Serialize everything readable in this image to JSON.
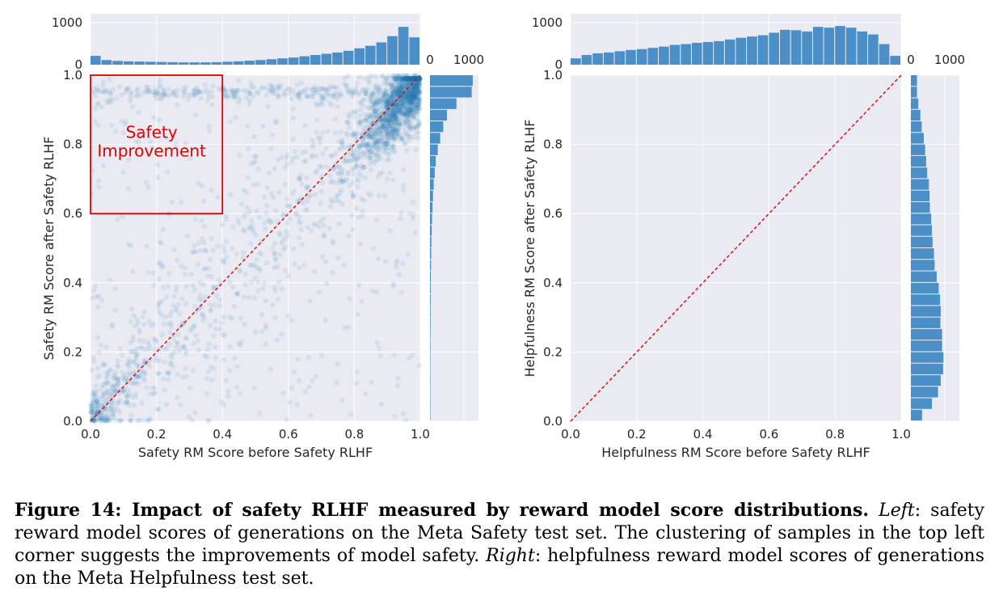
{
  "chart_data": [
    {
      "type": "scatter",
      "xlabel": "Safety RM Score before Safety RLHF",
      "ylabel": "Safety RM Score after Safety RLHF",
      "xlim": [
        0,
        1
      ],
      "ylim": [
        0,
        1
      ],
      "xticks": [
        "0.0",
        "0.2",
        "0.4",
        "0.6",
        "0.8",
        "1.0"
      ],
      "yticks": [
        "0.0",
        "0.2",
        "0.4",
        "0.6",
        "0.8",
        "1.0"
      ],
      "diagonal": true,
      "highlight_region": {
        "x": [
          0,
          0.4
        ],
        "y": [
          0.6,
          1.0
        ],
        "label_line1": "Safety",
        "label_line2": "Improvement"
      },
      "top_hist": {
        "axis_ticks": [
          "0",
          "1000"
        ],
        "max": 1000,
        "bins": 30,
        "counts": [
          210,
          110,
          90,
          80,
          75,
          70,
          65,
          60,
          55,
          55,
          55,
          60,
          70,
          80,
          95,
          110,
          130,
          150,
          170,
          200,
          230,
          260,
          290,
          330,
          390,
          450,
          530,
          680,
          900,
          650
        ]
      },
      "right_hist": {
        "axis_ticks": [
          "0",
          "1000"
        ],
        "max": 1000,
        "bins": 30,
        "counts": [
          1260,
          1230,
          780,
          500,
          390,
          300,
          230,
          170,
          140,
          110,
          90,
          75,
          60,
          50,
          40,
          35,
          30,
          25,
          22,
          20,
          18,
          16,
          15,
          14,
          13,
          12,
          12,
          12,
          12,
          12
        ]
      },
      "scatter_note": "dense cluster near (1,1), spread around diagonal, band near y≈0.95"
    },
    {
      "type": "scatter",
      "xlabel": "Helpfulness RM Score before Safety RLHF",
      "ylabel": "Helpfulness RM Score after Safety RLHF",
      "xlim": [
        0,
        1
      ],
      "ylim": [
        0,
        1
      ],
      "xticks": [
        "0.0",
        "0.2",
        "0.4",
        "0.6",
        "0.8",
        "1.0"
      ],
      "yticks": [
        "0.0",
        "0.2",
        "0.4",
        "0.6",
        "0.8",
        "1.0"
      ],
      "diagonal": true,
      "top_hist": {
        "axis_ticks": [
          "0",
          "1000"
        ],
        "max": 1000,
        "bins": 30,
        "counts": [
          150,
          230,
          270,
          290,
          320,
          350,
          370,
          400,
          430,
          470,
          490,
          520,
          540,
          560,
          600,
          640,
          670,
          700,
          760,
          830,
          820,
          790,
          900,
          880,
          920,
          880,
          790,
          720,
          490,
          210
        ]
      },
      "right_hist": {
        "axis_ticks": [
          "0",
          "1000"
        ],
        "max": 1000,
        "bins": 30,
        "counts": [
          180,
          180,
          220,
          280,
          320,
          380,
          420,
          450,
          480,
          530,
          550,
          560,
          600,
          620,
          640,
          680,
          700,
          760,
          820,
          860,
          880,
          870,
          920,
          920,
          960,
          950,
          880,
          800,
          620,
          330
        ]
      }
    }
  ],
  "caption": {
    "bold": "Figure 14: Impact of safety RLHF measured by reward model score distributions.",
    "left_label": "Left",
    "left_text": ": safety reward model scores of generations on the Meta Safety test set. The clustering of samples in the top left corner suggests the improvements of model safety.",
    "right_label": "Right",
    "right_text": ": helpfulness reward model scores of generations on the Meta Helpfulness test set."
  },
  "colors": {
    "bar": "#4c8fc6",
    "point": "#1f77b4",
    "panel_bg": "#eaeaf2",
    "diagonal": "#e00000",
    "box": "#e00000"
  }
}
